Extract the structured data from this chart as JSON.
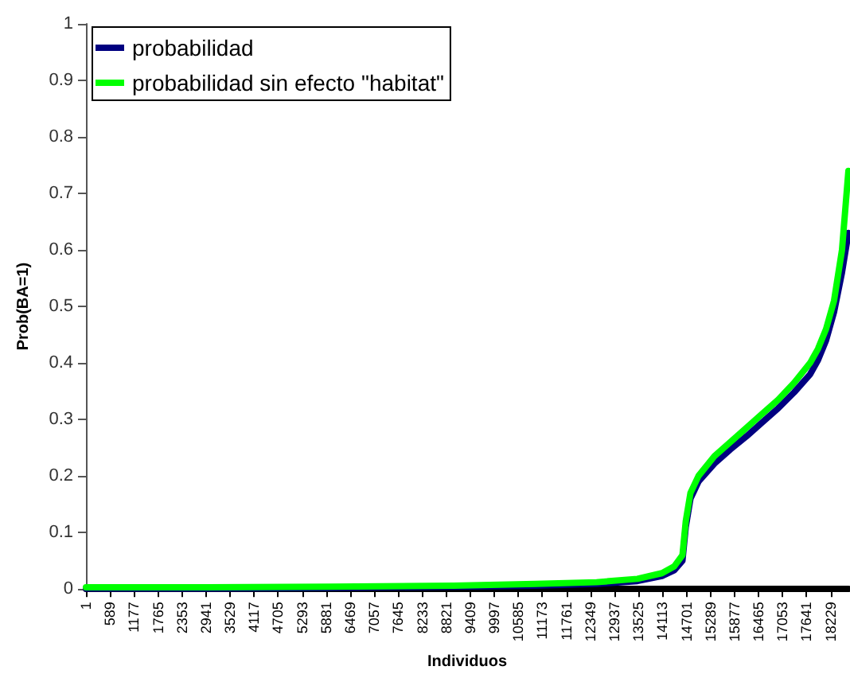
{
  "chart_data": {
    "type": "line",
    "xlabel": "Individuos",
    "ylabel": "Prob(BA=1)",
    "xlim": [
      1,
      18664
    ],
    "xticks": [
      1,
      589,
      1177,
      1765,
      2353,
      2941,
      3529,
      4117,
      4705,
      5293,
      5881,
      6469,
      7057,
      7645,
      8233,
      8821,
      9409,
      9997,
      10585,
      11173,
      11761,
      12349,
      12937,
      13525,
      14113,
      14701,
      15289,
      15877,
      16465,
      17053,
      17641,
      18229
    ],
    "ylim": [
      0,
      1
    ],
    "yticks": [
      0,
      0.1,
      0.2,
      0.3,
      0.4,
      0.5,
      0.6,
      0.7,
      0.8,
      0.9,
      1
    ],
    "x": [
      1,
      3000,
      6000,
      9000,
      11000,
      12500,
      13500,
      14100,
      14400,
      14602,
      14683,
      14798,
      14994,
      15384,
      15775,
      16165,
      16554,
      16946,
      17336,
      17727,
      17920,
      18117,
      18312,
      18507,
      18664
    ],
    "series": [
      {
        "name": "probabilidad",
        "color": "#000080",
        "values": [
          0.001,
          0.001,
          0.002,
          0.004,
          0.006,
          0.009,
          0.014,
          0.023,
          0.033,
          0.05,
          0.11,
          0.16,
          0.19,
          0.222,
          0.247,
          0.27,
          0.295,
          0.32,
          0.348,
          0.38,
          0.405,
          0.44,
          0.49,
          0.56,
          0.63
        ]
      },
      {
        "name": "probabilidad sin efecto \"habitat\"",
        "color": "#00ff00",
        "values": [
          0.003,
          0.003,
          0.004,
          0.006,
          0.009,
          0.012,
          0.018,
          0.028,
          0.04,
          0.06,
          0.12,
          0.17,
          0.2,
          0.235,
          0.26,
          0.285,
          0.31,
          0.335,
          0.365,
          0.4,
          0.425,
          0.46,
          0.51,
          0.6,
          0.74
        ]
      }
    ],
    "legend": "top left",
    "grid": false,
    "marker": "none",
    "line_style": "solid"
  }
}
